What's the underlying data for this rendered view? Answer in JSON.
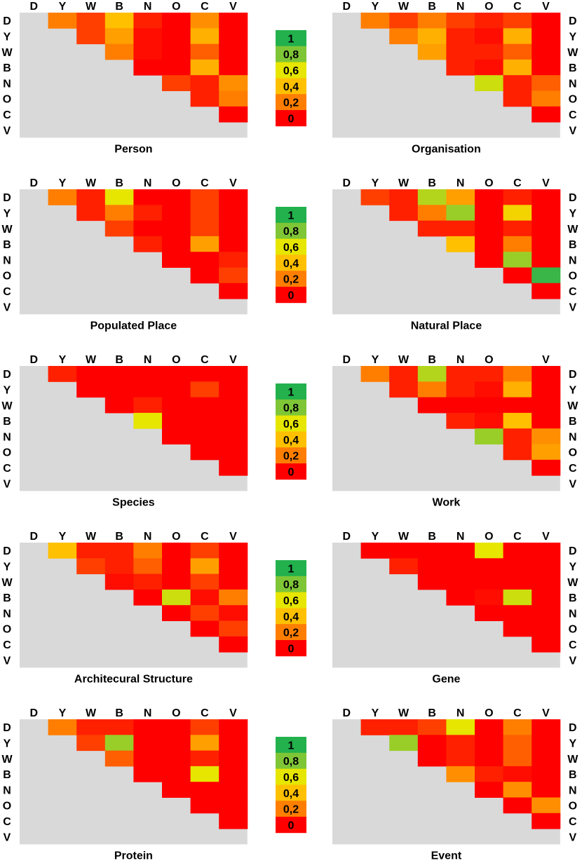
{
  "chart_data": {
    "type": "heatmap",
    "row_labels": [
      "D",
      "Y",
      "W",
      "B",
      "N",
      "O",
      "C",
      "V"
    ],
    "col_labels": [
      "D",
      "Y",
      "W",
      "B",
      "N",
      "O",
      "C",
      "V"
    ],
    "legend": {
      "labels": [
        "1",
        "0,8",
        "0,6",
        "0,4",
        "0,2",
        "0"
      ],
      "colors": [
        "#22b14c",
        "#7fc637",
        "#e6e600",
        "#ffc000",
        "#ff7e00",
        "#ff0000"
      ]
    },
    "panels": [
      {
        "title": "Person",
        "col_labels": [
          "D",
          "Y",
          "W",
          "B",
          "N",
          "O",
          "C",
          "V"
        ],
        "values": [
          [
            0.2,
            0.1,
            0.4,
            0.05,
            0,
            0.25,
            0
          ],
          [
            0.1,
            0.3,
            0.02,
            0,
            0.35,
            0
          ],
          [
            0.2,
            0.02,
            0,
            0.15,
            0
          ],
          [
            0,
            0,
            0.35,
            0
          ],
          [
            0.1,
            0.05,
            0.25
          ],
          [
            0.05,
            0.2
          ],
          [
            0
          ]
        ]
      },
      {
        "title": "Organisation",
        "col_labels": [
          "D",
          "Y",
          "W",
          "B",
          "N",
          "O",
          "C",
          "V"
        ],
        "values": [
          [
            0.2,
            0.1,
            0.2,
            0.1,
            0.05,
            0.1,
            0
          ],
          [
            0.2,
            0.35,
            0.05,
            0.02,
            0.35,
            0
          ],
          [
            0.3,
            0.05,
            0.05,
            0.15,
            0
          ],
          [
            0.05,
            0.02,
            0.35,
            0
          ],
          [
            0.65,
            0.05,
            0.15
          ],
          [
            0.05,
            0.2
          ],
          [
            0
          ]
        ]
      },
      {
        "title": "Populated Place",
        "col_labels": [
          "D",
          "Y",
          "W",
          "B",
          "N",
          "O",
          "C",
          "V"
        ],
        "values": [
          [
            0.2,
            0.05,
            0.6,
            0,
            0,
            0.1,
            0
          ],
          [
            0.05,
            0.2,
            0.05,
            0,
            0.1,
            0
          ],
          [
            0.1,
            0,
            0,
            0.1,
            0
          ],
          [
            0.05,
            0,
            0.3,
            0
          ],
          [
            0,
            0,
            0.05
          ],
          [
            0,
            0.1
          ],
          [
            0
          ]
        ]
      },
      {
        "title": "Natural Place",
        "col_labels": [
          "D",
          "Y",
          "W",
          "B",
          "N",
          "O",
          "C",
          "V"
        ],
        "values": [
          [
            0.1,
            0.05,
            0.7,
            0.3,
            0,
            0.05,
            0
          ],
          [
            0.05,
            0.2,
            0.75,
            0,
            0.5,
            0
          ],
          [
            0.05,
            0.05,
            0,
            0.05,
            0
          ],
          [
            0.4,
            0,
            0.2,
            0
          ],
          [
            0,
            0.75,
            0
          ],
          [
            0,
            0.95
          ],
          [
            0
          ]
        ]
      },
      {
        "title": "Species",
        "col_labels": [
          "D",
          "Y",
          "W",
          "B",
          "N",
          "O",
          "C",
          "V"
        ],
        "values": [
          [
            0.05,
            0,
            0,
            0,
            0,
            0,
            0
          ],
          [
            0,
            0,
            0,
            0,
            0.1,
            0
          ],
          [
            0,
            0.05,
            0,
            0,
            0
          ],
          [
            0.6,
            0,
            0,
            0
          ],
          [
            0,
            0,
            0
          ],
          [
            0,
            0
          ],
          [
            0
          ]
        ]
      },
      {
        "title": "Work",
        "col_labels": [
          "D",
          "Y",
          "W",
          "B",
          "N",
          "O",
          "",
          "V"
        ],
        "values": [
          [
            0.2,
            0.05,
            0.7,
            0.05,
            0.05,
            0.2,
            0
          ],
          [
            0.05,
            0.2,
            0.05,
            0.02,
            0.35,
            0
          ],
          [
            0,
            0,
            0,
            0,
            0
          ],
          [
            0.05,
            0.02,
            0.4,
            0
          ],
          [
            0.75,
            0.05,
            0.25
          ],
          [
            0.05,
            0.3
          ],
          [
            0
          ]
        ]
      },
      {
        "title": "Architecural Structure",
        "col_labels": [
          "D",
          "Y",
          "W",
          "B",
          "N",
          "O",
          "C",
          "V"
        ],
        "values": [
          [
            0.4,
            0.05,
            0.05,
            0.2,
            0,
            0.1,
            0
          ],
          [
            0.1,
            0.05,
            0.15,
            0,
            0.3,
            0
          ],
          [
            0.02,
            0.05,
            0,
            0.1,
            0
          ],
          [
            0,
            0.65,
            0.02,
            0.2
          ],
          [
            0,
            0.1,
            0.02
          ],
          [
            0,
            0.1
          ],
          [
            0
          ]
        ]
      },
      {
        "title": "Gene",
        "col_labels": [
          "D",
          "Y",
          "W",
          "B",
          "N",
          "O",
          "C",
          "V"
        ],
        "values": [
          [
            0,
            0,
            0,
            0,
            0.6,
            0,
            0
          ],
          [
            0.05,
            0,
            0,
            0,
            0,
            0
          ],
          [
            0,
            0,
            0,
            0,
            0
          ],
          [
            0,
            0.02,
            0.65,
            0
          ],
          [
            0,
            0,
            0
          ],
          [
            0,
            0
          ],
          [
            0
          ]
        ]
      },
      {
        "title": "Protein",
        "col_labels": [
          "D",
          "Y",
          "W",
          "B",
          "N",
          "O",
          "C",
          "V"
        ],
        "values": [
          [
            0.2,
            0.05,
            0.05,
            0,
            0,
            0.1,
            0
          ],
          [
            0.1,
            0.75,
            0,
            0,
            0.3,
            0
          ],
          [
            0.15,
            0,
            0,
            0.05,
            0
          ],
          [
            0,
            0,
            0.6,
            0
          ],
          [
            0,
            0,
            0
          ],
          [
            0,
            0
          ],
          [
            0
          ]
        ]
      },
      {
        "title": "Event",
        "col_labels": [
          "D",
          "Y",
          "W",
          "B",
          "N",
          "O",
          "C",
          "V"
        ],
        "values": [
          [
            0.05,
            0.05,
            0.1,
            0.6,
            0,
            0.2,
            0
          ],
          [
            0.75,
            0,
            0.05,
            0,
            0.15,
            0
          ],
          [
            0,
            0.05,
            0,
            0.15,
            0
          ],
          [
            0.25,
            0.05,
            0.02,
            0
          ],
          [
            0,
            0.25,
            0
          ],
          [
            0,
            0.25
          ],
          [
            0
          ]
        ]
      }
    ]
  }
}
